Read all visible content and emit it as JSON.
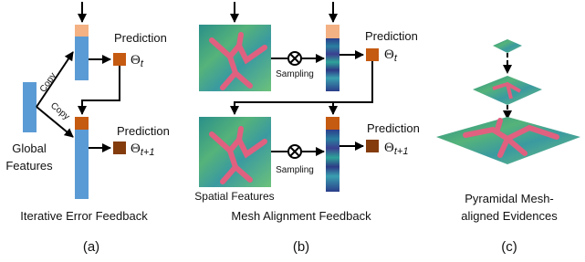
{
  "panels": [
    {
      "title": "Iterative Error Feedback",
      "label": "(a)",
      "predictions": [
        {
          "text": "Prediction",
          "symbol": "Θ",
          "subscript": "t"
        },
        {
          "text": "Prediction",
          "symbol": "Θ",
          "subscript": "t+1"
        }
      ],
      "copy_labels": [
        "Copy",
        "Copy"
      ],
      "input_label": [
        "Global",
        "Features"
      ]
    },
    {
      "title": "Mesh Alignment Feedback",
      "label": "(b)",
      "predictions": [
        {
          "text": "Prediction",
          "symbol": "Θ",
          "subscript": "t"
        },
        {
          "text": "Prediction",
          "symbol": "Θ",
          "subscript": "t+1"
        }
      ],
      "sampling_labels": [
        "Sampling",
        "Sampling"
      ],
      "input_label": "Spatial Features"
    },
    {
      "title_lines": [
        "Pyramidal Mesh-",
        "aligned Evidences"
      ],
      "label": "(c)"
    }
  ]
}
